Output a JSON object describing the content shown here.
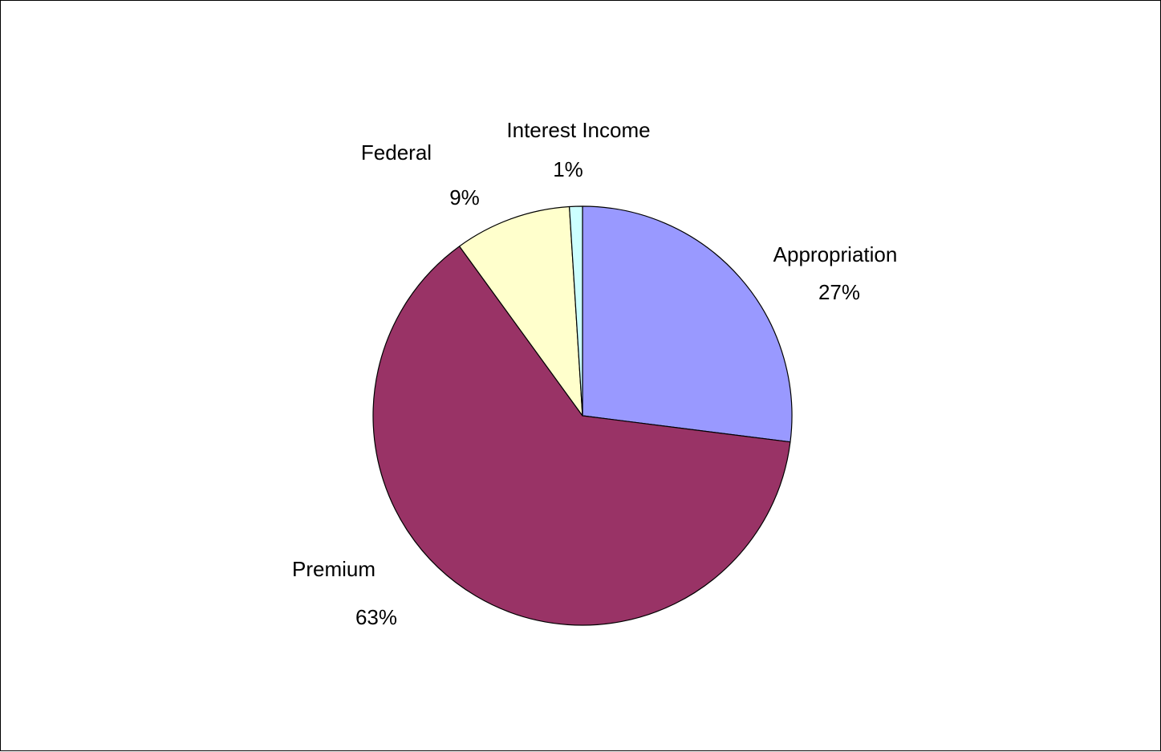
{
  "chart_data": {
    "type": "pie",
    "categories": [
      "Appropriation",
      "Premium",
      "Federal",
      "Interest Income"
    ],
    "values": [
      27,
      63,
      9,
      1
    ],
    "value_labels": [
      "27%",
      "63%",
      "9%",
      "1%"
    ],
    "colors": [
      "#9999FF",
      "#993366",
      "#FFFFCC",
      "#CCFFFF"
    ],
    "start_angle_deg": 0,
    "direction": "clockwise",
    "legend": "none",
    "title": ""
  }
}
